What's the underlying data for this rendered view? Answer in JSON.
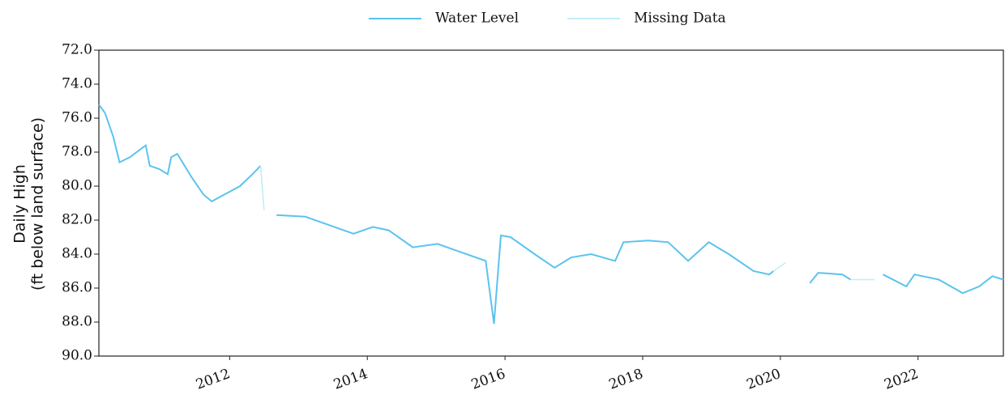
{
  "chart_data": {
    "type": "line",
    "ylabel": [
      "Daily High",
      "(ft below land surface)"
    ],
    "x": [
      2010.1,
      2010.19,
      2010.31,
      2010.4,
      2010.55,
      2010.78,
      2010.84,
      2010.98,
      2011.1,
      2011.15,
      2011.24,
      2011.45,
      2011.62,
      2011.74,
      2011.92,
      2012.15,
      2012.33,
      2012.45,
      2012.5,
      2012.68,
      2013.1,
      2013.45,
      2013.8,
      2014.08,
      2014.31,
      2014.66,
      2015.02,
      2015.37,
      2015.72,
      2015.84,
      2015.94,
      2016.08,
      2016.43,
      2016.72,
      2016.96,
      2017.25,
      2017.6,
      2017.72,
      2018.08,
      2018.37,
      2018.66,
      2018.96,
      2019.25,
      2019.61,
      2019.84,
      2019.9,
      2020.08,
      2020.43,
      2020.55,
      2020.9,
      2021.02,
      2021.37,
      2021.49,
      2021.83,
      2021.95,
      2022.3,
      2022.65,
      2022.89,
      2023.08,
      2023.24
    ],
    "series": [
      {
        "name": "Water Level",
        "color": "#5bc3ee",
        "values": [
          75.2,
          75.7,
          77.1,
          78.6,
          78.3,
          77.6,
          78.8,
          79.0,
          79.3,
          78.3,
          78.1,
          79.5,
          80.5,
          80.9,
          80.5,
          80.0,
          79.3,
          78.8,
          null,
          81.7,
          81.8,
          82.3,
          82.8,
          82.4,
          82.6,
          83.6,
          83.4,
          83.9,
          84.4,
          88.1,
          82.9,
          83.0,
          84.0,
          84.8,
          84.2,
          84.0,
          84.4,
          83.3,
          83.2,
          83.3,
          84.4,
          83.3,
          84.0,
          85.0,
          85.2,
          85.0,
          null,
          85.7,
          85.1,
          85.2,
          85.5,
          null,
          85.2,
          85.9,
          85.2,
          85.5,
          86.3,
          85.9,
          85.3,
          85.5
        ]
      },
      {
        "name": "Missing Data",
        "color": "#c2ecfa",
        "values": [
          null,
          null,
          null,
          null,
          null,
          null,
          null,
          null,
          null,
          null,
          null,
          null,
          null,
          null,
          null,
          null,
          null,
          78.8,
          81.4,
          null,
          null,
          null,
          null,
          null,
          null,
          null,
          null,
          null,
          null,
          null,
          null,
          null,
          null,
          null,
          null,
          null,
          null,
          null,
          null,
          null,
          null,
          null,
          null,
          null,
          null,
          85.0,
          84.5,
          null,
          null,
          null,
          85.5,
          85.5,
          null,
          null,
          null,
          null,
          null,
          null,
          null,
          null
        ]
      }
    ],
    "xlim": [
      2010.1,
      2023.24
    ],
    "xticks": [
      2012,
      2014,
      2016,
      2018,
      2020,
      2022
    ],
    "ylim": [
      72,
      90
    ],
    "y_inverted": true,
    "yticks": [
      {
        "value": 72,
        "label": "72.0"
      },
      {
        "value": 74,
        "label": "74.0"
      },
      {
        "value": 76,
        "label": "76.0"
      },
      {
        "value": 78,
        "label": "78.0"
      },
      {
        "value": 80,
        "label": "80.0"
      },
      {
        "value": 82,
        "label": "82.0"
      },
      {
        "value": 84,
        "label": "84.0"
      },
      {
        "value": 86,
        "label": "86.0"
      },
      {
        "value": 88,
        "label": "88.0"
      },
      {
        "value": 90,
        "label": "90.0"
      }
    ],
    "grid": false,
    "legend": "top"
  }
}
